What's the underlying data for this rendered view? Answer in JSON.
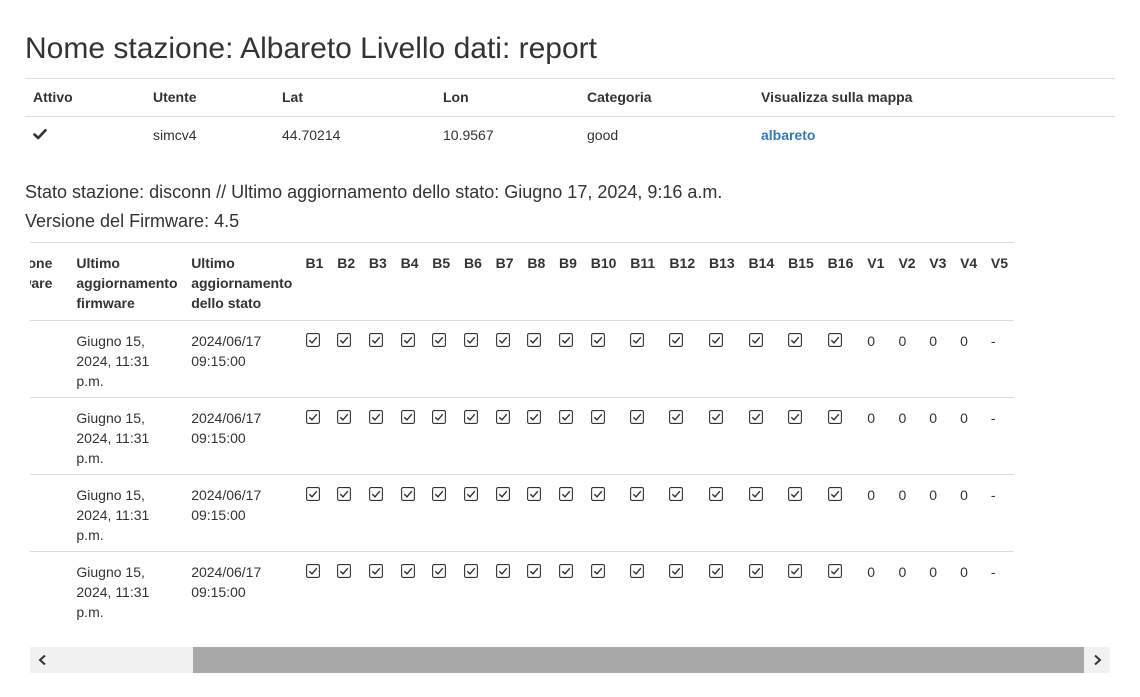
{
  "page": {
    "title": "Nome stazione: Albareto Livello dati: report"
  },
  "station_table": {
    "headers": [
      "Attivo",
      "Utente",
      "Lat",
      "Lon",
      "Categoria",
      "Visualizza sulla mappa"
    ],
    "row": {
      "active_icon": "check-icon",
      "user": "simcv4",
      "lat": "44.70214",
      "lon": "10.9567",
      "category": "good",
      "map_link": "albareto"
    }
  },
  "status": {
    "line": "Stato stazione: disconn // Ultimo aggiornamento dello stato: Giugno 17, 2024, 9:16 a.m.",
    "firmware": "Versione del Firmware: 4.5"
  },
  "report": {
    "headers": {
      "firmware_version": "Versione firmware",
      "last_fw_update": "Ultimo aggiornamento firmware",
      "last_status_update": "Ultimo aggiornamento dello stato",
      "b": [
        "B1",
        "B2",
        "B3",
        "B4",
        "B5",
        "B6",
        "B7",
        "B8",
        "B9",
        "B10",
        "B11",
        "B12",
        "B13",
        "B14",
        "B15",
        "B16"
      ],
      "v": [
        "V1",
        "V2",
        "V3",
        "V4",
        "V5"
      ]
    },
    "rows": [
      {
        "fw_update": "Giugno 15, 2024, 11:31 p.m.",
        "status_update": "2024/06/17 09:15:00",
        "b_checked": [
          true,
          true,
          true,
          true,
          true,
          true,
          true,
          true,
          true,
          true,
          true,
          true,
          true,
          true,
          true,
          true
        ],
        "v": [
          "0",
          "0",
          "0",
          "0",
          "-"
        ]
      },
      {
        "fw_update": "Giugno 15, 2024, 11:31 p.m.",
        "status_update": "2024/06/17 09:15:00",
        "b_checked": [
          true,
          true,
          true,
          true,
          true,
          true,
          true,
          true,
          true,
          true,
          true,
          true,
          true,
          true,
          true,
          true
        ],
        "v": [
          "0",
          "0",
          "0",
          "0",
          "-"
        ]
      },
      {
        "fw_update": "Giugno 15, 2024, 11:31 p.m.",
        "status_update": "2024/06/17 09:15:00",
        "b_checked": [
          true,
          true,
          true,
          true,
          true,
          true,
          true,
          true,
          true,
          true,
          true,
          true,
          true,
          true,
          true,
          true
        ],
        "v": [
          "0",
          "0",
          "0",
          "0",
          "-"
        ]
      },
      {
        "fw_update": "Giugno 15, 2024, 11:31 p.m.",
        "status_update": "2024/06/17 09:15:00",
        "b_checked": [
          true,
          true,
          true,
          true,
          true,
          true,
          true,
          true,
          true,
          true,
          true,
          true,
          true,
          true,
          true,
          true
        ],
        "v": [
          "0",
          "0",
          "0",
          "0",
          "-"
        ]
      }
    ]
  },
  "scrollbar": {
    "left_icon": "chevron-left-icon",
    "right_icon": "chevron-right-icon"
  },
  "colors": {
    "link": "#337ab7",
    "border": "#dddddd",
    "scroll_track": "#f1f1f1",
    "scroll_thumb": "#a8a8a8"
  }
}
